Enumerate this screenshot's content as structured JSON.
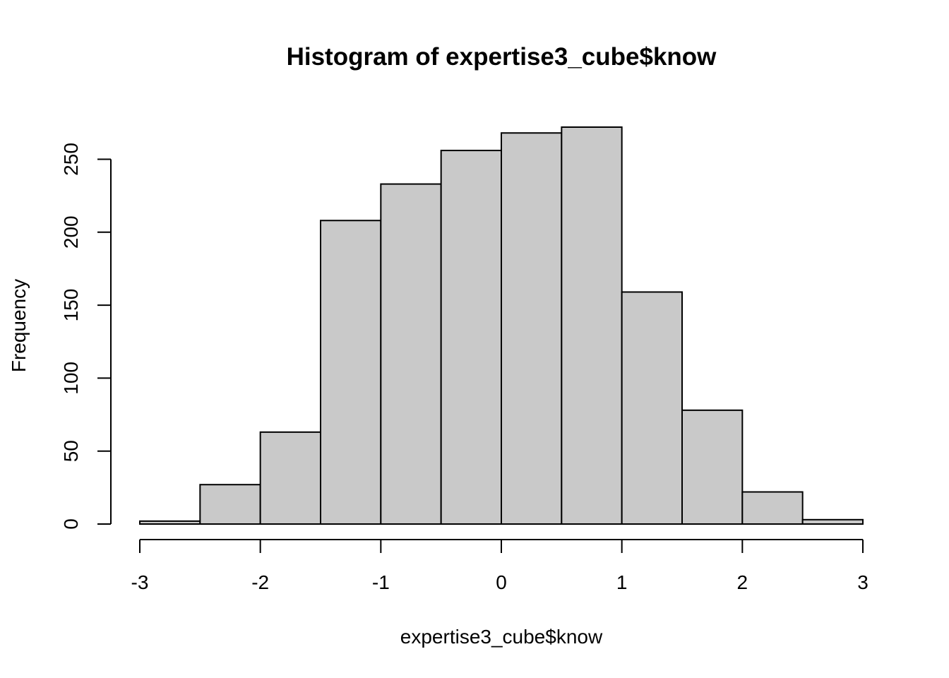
{
  "chart_data": {
    "type": "bar",
    "title": "Histogram of expertise3_cube$know",
    "xlabel": "expertise3_cube$know",
    "ylabel": "Frequency",
    "bin_edges": [
      -3,
      -2.5,
      -2,
      -1.5,
      -1,
      -0.5,
      0,
      0.5,
      1,
      1.5,
      2,
      2.5,
      3
    ],
    "values": [
      2,
      27,
      63,
      208,
      233,
      256,
      268,
      272,
      159,
      78,
      22,
      3
    ],
    "xlim": [
      -3,
      3
    ],
    "ylim": [
      0,
      272
    ],
    "x_ticks": [
      "-3",
      "-2",
      "-1",
      "0",
      "1",
      "2",
      "3"
    ],
    "y_ticks": [
      "0",
      "50",
      "100",
      "150",
      "200",
      "250"
    ],
    "grid": false,
    "legend": "none",
    "colors": {
      "bar_fill": "#c9c9c9",
      "bar_stroke": "#000000"
    }
  }
}
